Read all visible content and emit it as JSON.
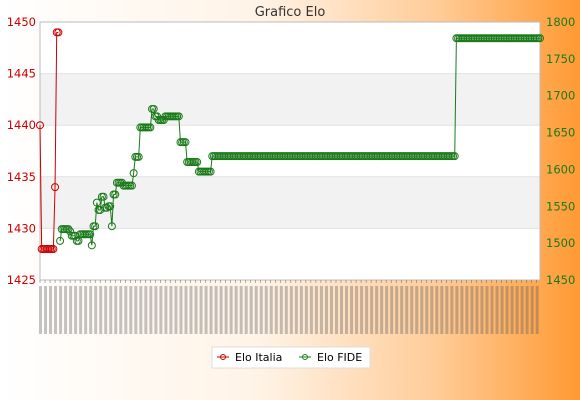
{
  "chart_data": {
    "type": "line",
    "title": "Grafico Elo",
    "y_left": {
      "min": 1425,
      "max": 1450,
      "step": 5,
      "ticks": [
        "1425",
        "1430",
        "1435",
        "1440",
        "1445",
        "1450"
      ],
      "color": "#cc0000"
    },
    "y_right": {
      "min": 1450,
      "max": 1800,
      "step": 50,
      "ticks": [
        "1450",
        "1500",
        "1550",
        "1600",
        "1650",
        "1700",
        "1750",
        "1800"
      ],
      "color": "#1a7a1a"
    },
    "grid": true,
    "legend_position": "bottom-center",
    "series": [
      {
        "name": "Elo Italia",
        "axis": "left",
        "color": "#cc0000",
        "points": [
          [
            0,
            1440
          ],
          [
            1,
            1428
          ],
          [
            2,
            1428
          ],
          [
            3,
            1428
          ],
          [
            4,
            1428
          ],
          [
            5,
            1428
          ],
          [
            6,
            1428
          ],
          [
            7,
            1428
          ],
          [
            8,
            1428
          ],
          [
            9,
            1434
          ],
          [
            10,
            1449
          ],
          [
            11,
            1449
          ]
        ]
      },
      {
        "name": "Elo FIDE",
        "axis": "right",
        "color": "#1a7a1a",
        "points": [
          [
            12,
            1503
          ],
          [
            13,
            1519
          ],
          [
            14,
            1519
          ],
          [
            15,
            1519
          ],
          [
            16,
            1519
          ],
          [
            17,
            1519
          ],
          [
            18,
            1516
          ],
          [
            19,
            1510
          ],
          [
            20,
            1510
          ],
          [
            21,
            1510
          ],
          [
            22,
            1503
          ],
          [
            23,
            1503
          ],
          [
            24,
            1512
          ],
          [
            25,
            1512
          ],
          [
            26,
            1512
          ],
          [
            27,
            1512
          ],
          [
            28,
            1512
          ],
          [
            29,
            1512
          ],
          [
            30,
            1512
          ],
          [
            31,
            1497
          ],
          [
            32,
            1523
          ],
          [
            33,
            1523
          ],
          [
            34,
            1555
          ],
          [
            35,
            1545
          ],
          [
            36,
            1545
          ],
          [
            37,
            1563
          ],
          [
            38,
            1563
          ],
          [
            39,
            1548
          ],
          [
            40,
            1548
          ],
          [
            41,
            1550
          ],
          [
            42,
            1550
          ],
          [
            43,
            1523
          ],
          [
            44,
            1566
          ],
          [
            45,
            1566
          ],
          [
            46,
            1582
          ],
          [
            47,
            1582
          ],
          [
            48,
            1582
          ],
          [
            49,
            1582
          ],
          [
            50,
            1578
          ],
          [
            51,
            1578
          ],
          [
            52,
            1578
          ],
          [
            53,
            1578
          ],
          [
            54,
            1578
          ],
          [
            55,
            1578
          ],
          [
            56,
            1595
          ],
          [
            57,
            1617
          ],
          [
            58,
            1617
          ],
          [
            59,
            1617
          ],
          [
            60,
            1657
          ],
          [
            61,
            1657
          ],
          [
            62,
            1657
          ],
          [
            63,
            1657
          ],
          [
            64,
            1657
          ],
          [
            65,
            1657
          ],
          [
            66,
            1657
          ],
          [
            67,
            1682
          ],
          [
            68,
            1682
          ],
          [
            69,
            1672
          ],
          [
            70,
            1672
          ],
          [
            71,
            1667
          ],
          [
            72,
            1667
          ],
          [
            73,
            1667
          ],
          [
            74,
            1667
          ],
          [
            75,
            1672
          ],
          [
            76,
            1672
          ],
          [
            77,
            1672
          ],
          [
            78,
            1672
          ],
          [
            79,
            1672
          ],
          [
            80,
            1672
          ],
          [
            81,
            1672
          ],
          [
            82,
            1672
          ],
          [
            83,
            1672
          ],
          [
            84,
            1637
          ],
          [
            85,
            1637
          ],
          [
            86,
            1637
          ],
          [
            87,
            1637
          ],
          [
            88,
            1610
          ],
          [
            89,
            1610
          ],
          [
            90,
            1610
          ],
          [
            91,
            1610
          ],
          [
            92,
            1610
          ],
          [
            93,
            1610
          ],
          [
            94,
            1610
          ],
          [
            95,
            1597
          ],
          [
            96,
            1597
          ],
          [
            97,
            1597
          ],
          [
            98,
            1597
          ],
          [
            99,
            1597
          ],
          [
            100,
            1597
          ],
          [
            101,
            1597
          ],
          [
            102,
            1597
          ],
          [
            103,
            1618
          ],
          [
            104,
            1618
          ],
          [
            105,
            1618
          ],
          [
            106,
            1618
          ],
          [
            107,
            1618
          ],
          [
            108,
            1618
          ],
          [
            109,
            1618
          ],
          [
            110,
            1618
          ],
          [
            111,
            1618
          ],
          [
            112,
            1618
          ],
          [
            113,
            1618
          ],
          [
            114,
            1618
          ],
          [
            115,
            1618
          ],
          [
            116,
            1618
          ],
          [
            117,
            1618
          ],
          [
            118,
            1618
          ],
          [
            119,
            1618
          ],
          [
            120,
            1618
          ],
          [
            121,
            1618
          ],
          [
            122,
            1618
          ],
          [
            123,
            1618
          ],
          [
            124,
            1618
          ],
          [
            125,
            1618
          ],
          [
            126,
            1618
          ],
          [
            127,
            1618
          ],
          [
            128,
            1618
          ],
          [
            129,
            1618
          ],
          [
            130,
            1618
          ],
          [
            131,
            1618
          ],
          [
            132,
            1618
          ],
          [
            133,
            1618
          ],
          [
            134,
            1618
          ],
          [
            135,
            1618
          ],
          [
            136,
            1618
          ],
          [
            137,
            1618
          ],
          [
            138,
            1618
          ],
          [
            139,
            1618
          ],
          [
            140,
            1618
          ],
          [
            141,
            1618
          ],
          [
            142,
            1618
          ],
          [
            143,
            1618
          ],
          [
            144,
            1618
          ],
          [
            145,
            1618
          ],
          [
            146,
            1618
          ],
          [
            147,
            1618
          ],
          [
            148,
            1618
          ],
          [
            149,
            1618
          ],
          [
            150,
            1618
          ],
          [
            151,
            1618
          ],
          [
            152,
            1618
          ],
          [
            153,
            1618
          ],
          [
            154,
            1618
          ],
          [
            155,
            1618
          ],
          [
            156,
            1618
          ],
          [
            157,
            1618
          ],
          [
            158,
            1618
          ],
          [
            159,
            1618
          ],
          [
            160,
            1618
          ],
          [
            161,
            1618
          ],
          [
            162,
            1618
          ],
          [
            163,
            1618
          ],
          [
            164,
            1618
          ],
          [
            165,
            1618
          ],
          [
            166,
            1618
          ],
          [
            167,
            1618
          ],
          [
            168,
            1618
          ],
          [
            169,
            1618
          ],
          [
            170,
            1618
          ],
          [
            171,
            1618
          ],
          [
            172,
            1618
          ],
          [
            173,
            1618
          ],
          [
            174,
            1618
          ],
          [
            175,
            1618
          ],
          [
            176,
            1618
          ],
          [
            177,
            1618
          ],
          [
            178,
            1618
          ],
          [
            179,
            1618
          ],
          [
            180,
            1618
          ],
          [
            181,
            1618
          ],
          [
            182,
            1618
          ],
          [
            183,
            1618
          ],
          [
            184,
            1618
          ],
          [
            185,
            1618
          ],
          [
            186,
            1618
          ],
          [
            187,
            1618
          ],
          [
            188,
            1618
          ],
          [
            189,
            1618
          ],
          [
            190,
            1618
          ],
          [
            191,
            1618
          ],
          [
            192,
            1618
          ],
          [
            193,
            1618
          ],
          [
            194,
            1618
          ],
          [
            195,
            1618
          ],
          [
            196,
            1618
          ],
          [
            197,
            1618
          ],
          [
            198,
            1618
          ],
          [
            199,
            1618
          ],
          [
            200,
            1618
          ],
          [
            201,
            1618
          ],
          [
            202,
            1618
          ],
          [
            203,
            1618
          ],
          [
            204,
            1618
          ],
          [
            205,
            1618
          ],
          [
            206,
            1618
          ],
          [
            207,
            1618
          ],
          [
            208,
            1618
          ],
          [
            209,
            1618
          ],
          [
            210,
            1618
          ],
          [
            211,
            1618
          ],
          [
            212,
            1618
          ],
          [
            213,
            1618
          ],
          [
            214,
            1618
          ],
          [
            215,
            1618
          ],
          [
            216,
            1618
          ],
          [
            217,
            1618
          ],
          [
            218,
            1618
          ],
          [
            219,
            1618
          ],
          [
            220,
            1618
          ],
          [
            221,
            1618
          ],
          [
            222,
            1618
          ],
          [
            223,
            1618
          ],
          [
            224,
            1618
          ],
          [
            225,
            1618
          ],
          [
            226,
            1618
          ],
          [
            227,
            1618
          ],
          [
            228,
            1618
          ],
          [
            229,
            1618
          ],
          [
            230,
            1618
          ],
          [
            231,
            1618
          ],
          [
            232,
            1618
          ],
          [
            233,
            1618
          ],
          [
            234,
            1618
          ],
          [
            235,
            1618
          ],
          [
            236,
            1618
          ],
          [
            237,
            1618
          ],
          [
            238,
            1618
          ],
          [
            239,
            1618
          ],
          [
            240,
            1618
          ],
          [
            241,
            1618
          ],
          [
            242,
            1618
          ],
          [
            243,
            1618
          ],
          [
            244,
            1618
          ],
          [
            245,
            1618
          ],
          [
            246,
            1618
          ],
          [
            247,
            1618
          ],
          [
            248,
            1618
          ],
          [
            249,
            1778
          ],
          [
            250,
            1778
          ],
          [
            251,
            1778
          ],
          [
            252,
            1778
          ],
          [
            253,
            1778
          ],
          [
            254,
            1778
          ],
          [
            255,
            1778
          ],
          [
            256,
            1778
          ],
          [
            257,
            1778
          ],
          [
            258,
            1778
          ],
          [
            259,
            1778
          ],
          [
            260,
            1778
          ],
          [
            261,
            1778
          ],
          [
            262,
            1778
          ],
          [
            263,
            1778
          ],
          [
            264,
            1778
          ],
          [
            265,
            1778
          ],
          [
            266,
            1778
          ],
          [
            267,
            1778
          ],
          [
            268,
            1778
          ],
          [
            269,
            1778
          ],
          [
            270,
            1778
          ],
          [
            271,
            1778
          ],
          [
            272,
            1778
          ],
          [
            273,
            1778
          ],
          [
            274,
            1778
          ],
          [
            275,
            1778
          ],
          [
            276,
            1778
          ],
          [
            277,
            1778
          ],
          [
            278,
            1778
          ],
          [
            279,
            1778
          ],
          [
            280,
            1778
          ],
          [
            281,
            1778
          ],
          [
            282,
            1778
          ],
          [
            283,
            1778
          ],
          [
            284,
            1778
          ],
          [
            285,
            1778
          ],
          [
            286,
            1778
          ],
          [
            287,
            1778
          ],
          [
            288,
            1778
          ],
          [
            289,
            1778
          ],
          [
            290,
            1778
          ],
          [
            291,
            1778
          ],
          [
            292,
            1778
          ],
          [
            293,
            1778
          ],
          [
            294,
            1778
          ],
          [
            295,
            1778
          ],
          [
            296,
            1778
          ],
          [
            297,
            1778
          ],
          [
            298,
            1778
          ],
          [
            299,
            1778
          ]
        ]
      }
    ],
    "x_count": 300
  },
  "legend": {
    "italia_label": "Elo Italia",
    "fide_label": "Elo FIDE"
  }
}
